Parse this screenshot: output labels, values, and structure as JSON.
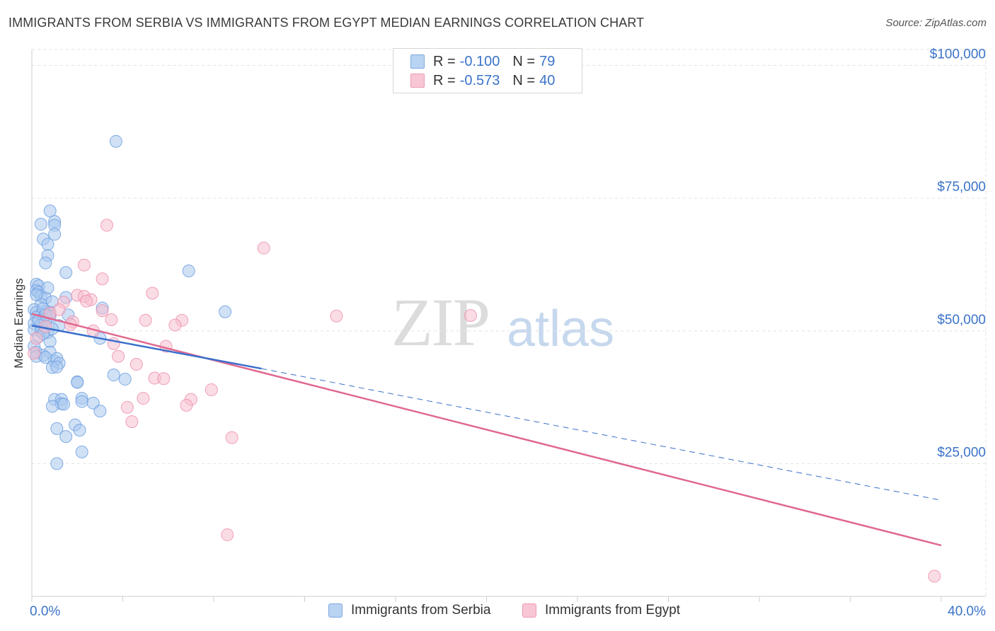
{
  "header": {
    "title": "IMMIGRANTS FROM SERBIA VS IMMIGRANTS FROM EGYPT MEDIAN EARNINGS CORRELATION CHART",
    "source": "Source: ZipAtlas.com"
  },
  "watermark": {
    "zip": "ZIP",
    "atlas": "atlas"
  },
  "legend": {
    "rows": [
      {
        "r_label": "R =",
        "r_value": "-0.100",
        "n_label": "N =",
        "n_value": "79",
        "color": "#b9d3f2",
        "border": "#7fa9e0"
      },
      {
        "r_label": "R =",
        "r_value": "-0.573",
        "n_label": "N =",
        "n_value": "40",
        "color": "#f8c6d4",
        "border": "#ee9ab2"
      }
    ]
  },
  "bottom_legend": {
    "serbia": "Immigrants from Serbia",
    "egypt": "Immigrants from Egypt"
  },
  "chart_data": {
    "type": "scatter",
    "title": "IMMIGRANTS FROM SERBIA VS IMMIGRANTS FROM EGYPT MEDIAN EARNINGS CORRELATION CHART",
    "xlabel": "",
    "ylabel": "Median Earnings",
    "xlim": [
      0,
      40
    ],
    "ylim": [
      0,
      103000
    ],
    "x_tick_labels": [
      "0.0%",
      "40.0%"
    ],
    "y_ticks": [
      {
        "value": 25000,
        "label": "$25,000"
      },
      {
        "value": 50000,
        "label": "$50,000"
      },
      {
        "value": 75000,
        "label": "$75,000"
      },
      {
        "value": 100000,
        "label": "$100,000"
      }
    ],
    "colors": {
      "serbia": "#6ea0e0",
      "serbia_fill": "#aac8ee",
      "serbia_line": "#3a6fcc",
      "egypt": "#ee90ac",
      "egypt_fill": "#f6bfcf",
      "egypt_line": "#e0688f"
    },
    "series": [
      {
        "name": "Immigrants from Serbia",
        "points": [
          [
            3.7,
            85.7
          ],
          [
            0.8,
            72.6
          ],
          [
            1.0,
            70.6
          ],
          [
            0.4,
            70.1
          ],
          [
            1.0,
            69.9
          ],
          [
            0.5,
            67.3
          ],
          [
            1.0,
            68.2
          ],
          [
            0.7,
            66.3
          ],
          [
            0.7,
            64.2
          ],
          [
            0.6,
            62.8
          ],
          [
            1.5,
            61.0
          ],
          [
            6.9,
            61.3
          ],
          [
            0.2,
            58.8
          ],
          [
            0.3,
            58.5
          ],
          [
            0.2,
            57.6
          ],
          [
            0.3,
            57.3
          ],
          [
            0.4,
            56.6
          ],
          [
            0.6,
            56.2
          ],
          [
            1.5,
            56.3
          ],
          [
            0.4,
            55.0
          ],
          [
            0.9,
            55.5
          ],
          [
            0.1,
            54.0
          ],
          [
            3.1,
            54.3
          ],
          [
            8.5,
            53.6
          ],
          [
            0.2,
            53.5
          ],
          [
            0.4,
            53.1
          ],
          [
            0.6,
            53.6
          ],
          [
            0.8,
            53.5
          ],
          [
            1.6,
            53.0
          ],
          [
            0.2,
            52.6
          ],
          [
            0.5,
            52.3
          ],
          [
            0.8,
            52.8
          ],
          [
            0.1,
            51.4
          ],
          [
            0.4,
            51.1
          ],
          [
            0.6,
            51.6
          ],
          [
            1.2,
            51.0
          ],
          [
            0.1,
            50.2
          ],
          [
            0.4,
            50.0
          ],
          [
            0.7,
            49.7
          ],
          [
            3.0,
            48.6
          ],
          [
            0.8,
            48.0
          ],
          [
            0.1,
            47.1
          ],
          [
            0.2,
            46.0
          ],
          [
            0.5,
            45.4
          ],
          [
            0.8,
            46.0
          ],
          [
            1.0,
            44.3
          ],
          [
            1.1,
            44.8
          ],
          [
            1.2,
            43.9
          ],
          [
            0.9,
            43.1
          ],
          [
            1.1,
            43.2
          ],
          [
            3.6,
            41.7
          ],
          [
            4.1,
            40.9
          ],
          [
            2.0,
            40.4
          ],
          [
            2.0,
            40.3
          ],
          [
            1.0,
            37.1
          ],
          [
            1.3,
            37.1
          ],
          [
            2.7,
            36.4
          ],
          [
            1.3,
            36.3
          ],
          [
            1.4,
            36.2
          ],
          [
            2.2,
            37.3
          ],
          [
            0.9,
            35.8
          ],
          [
            3.0,
            34.9
          ],
          [
            2.2,
            36.7
          ],
          [
            1.1,
            31.6
          ],
          [
            1.9,
            32.3
          ],
          [
            2.1,
            31.3
          ],
          [
            1.5,
            30.1
          ],
          [
            2.2,
            27.2
          ],
          [
            1.1,
            25.0
          ],
          [
            0.2,
            45.2
          ],
          [
            0.6,
            45.0
          ],
          [
            0.3,
            52.0
          ],
          [
            0.5,
            54.2
          ],
          [
            0.2,
            56.8
          ],
          [
            0.7,
            58.1
          ],
          [
            0.9,
            50.4
          ],
          [
            0.3,
            48.9
          ],
          [
            0.5,
            49.5
          ],
          [
            0.6,
            53.0
          ]
        ]
      },
      {
        "name": "Immigrants from Egypt",
        "points": [
          [
            3.3,
            69.9
          ],
          [
            10.2,
            65.6
          ],
          [
            2.3,
            62.4
          ],
          [
            3.1,
            59.8
          ],
          [
            5.3,
            57.1
          ],
          [
            2.0,
            56.7
          ],
          [
            2.3,
            56.5
          ],
          [
            2.6,
            55.9
          ],
          [
            1.4,
            55.4
          ],
          [
            3.1,
            53.8
          ],
          [
            13.4,
            52.8
          ],
          [
            19.3,
            52.9
          ],
          [
            3.5,
            52.1
          ],
          [
            5.0,
            52.0
          ],
          [
            6.6,
            52.0
          ],
          [
            1.8,
            51.7
          ],
          [
            1.7,
            51.2
          ],
          [
            6.3,
            51.1
          ],
          [
            2.7,
            50.0
          ],
          [
            3.6,
            47.6
          ],
          [
            5.9,
            47.1
          ],
          [
            3.8,
            45.2
          ],
          [
            4.6,
            43.7
          ],
          [
            0.8,
            53.3
          ],
          [
            0.2,
            48.6
          ],
          [
            0.1,
            45.8
          ],
          [
            5.4,
            41.1
          ],
          [
            5.8,
            41.0
          ],
          [
            7.9,
            38.9
          ],
          [
            4.9,
            37.3
          ],
          [
            7.0,
            37.1
          ],
          [
            6.8,
            36.0
          ],
          [
            4.2,
            35.6
          ],
          [
            4.4,
            32.9
          ],
          [
            8.8,
            29.9
          ],
          [
            8.6,
            11.6
          ],
          [
            39.7,
            3.8
          ],
          [
            1.2,
            54.0
          ],
          [
            0.6,
            50.8
          ],
          [
            2.4,
            55.6
          ]
        ]
      }
    ],
    "trendlines": [
      {
        "name": "Immigrants from Serbia",
        "solid": [
          [
            0,
            51.0
          ],
          [
            10.1,
            42.9
          ]
        ],
        "dashed": [
          [
            10.1,
            42.9
          ],
          [
            40,
            18.1
          ]
        ]
      },
      {
        "name": "Immigrants from Egypt",
        "solid": [
          [
            0,
            53.2
          ],
          [
            40,
            9.6
          ]
        ]
      }
    ]
  }
}
